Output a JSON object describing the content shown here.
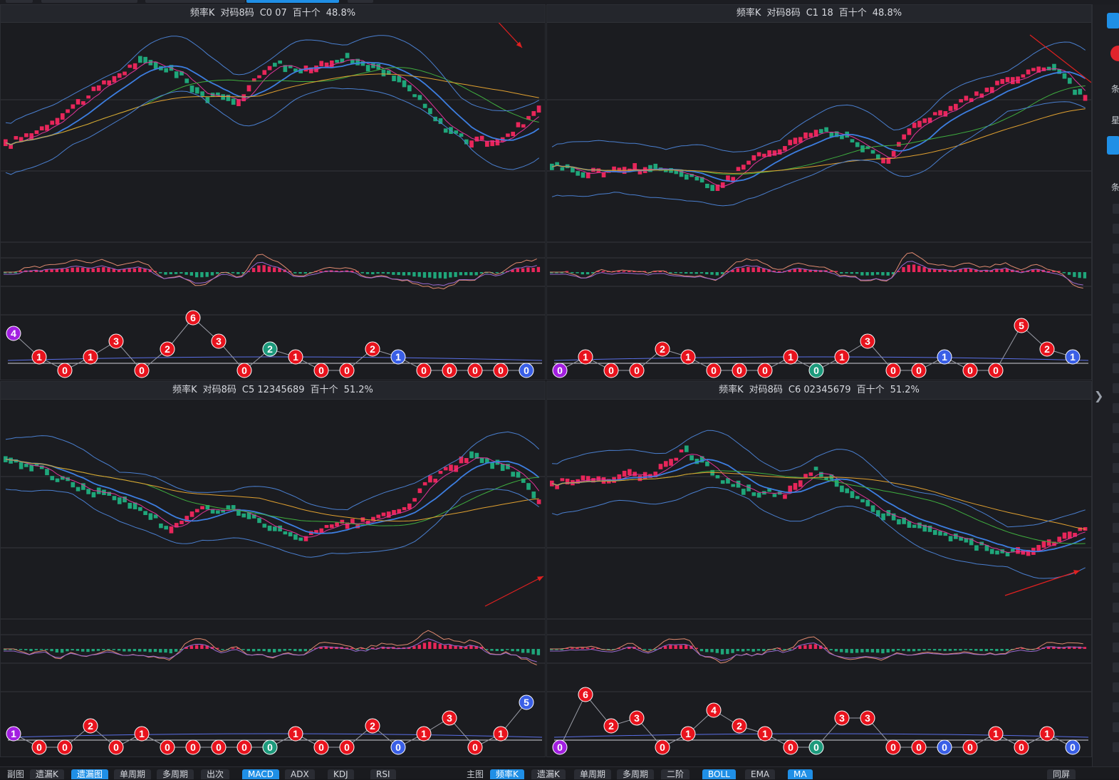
{
  "panels": [
    {
      "title": {
        "name": "频率K",
        "code": "对码8码",
        "group": "C0 07",
        "pos": "百十个",
        "pct": "48.8%"
      },
      "seq": [
        [
          4,
          "purple"
        ],
        [
          1,
          "red"
        ],
        [
          0,
          "red"
        ],
        [
          1,
          "red"
        ],
        [
          3,
          "red"
        ],
        [
          0,
          "red"
        ],
        [
          2,
          "red"
        ],
        [
          6,
          "red"
        ],
        [
          3,
          "red"
        ],
        [
          0,
          "red"
        ],
        [
          2,
          "teal"
        ],
        [
          1,
          "red"
        ],
        [
          0,
          "red"
        ],
        [
          0,
          "red"
        ],
        [
          2,
          "red"
        ],
        [
          1,
          "blue"
        ],
        [
          0,
          "red"
        ],
        [
          0,
          "red"
        ],
        [
          0,
          "red"
        ],
        [
          0,
          "red"
        ],
        [
          0,
          "blue"
        ]
      ],
      "arrow_direction": "down-right"
    },
    {
      "title": {
        "name": "频率K",
        "code": "对码8码",
        "group": "C1 18",
        "pos": "百十个",
        "pct": "48.8%"
      },
      "seq": [
        [
          0,
          "purple"
        ],
        [
          1,
          "red"
        ],
        [
          0,
          "red"
        ],
        [
          0,
          "red"
        ],
        [
          2,
          "red"
        ],
        [
          1,
          "red"
        ],
        [
          0,
          "red"
        ],
        [
          0,
          "red"
        ],
        [
          0,
          "red"
        ],
        [
          1,
          "red"
        ],
        [
          0,
          "teal"
        ],
        [
          1,
          "red"
        ],
        [
          3,
          "red"
        ],
        [
          0,
          "red"
        ],
        [
          0,
          "red"
        ],
        [
          1,
          "blue"
        ],
        [
          0,
          "red"
        ],
        [
          0,
          "red"
        ],
        [
          5,
          "red"
        ],
        [
          2,
          "red"
        ],
        [
          1,
          "blue"
        ]
      ],
      "arrow_direction": "down-right"
    },
    {
      "title": {
        "name": "频率K",
        "code": "对码8码",
        "group": "C5 12345689",
        "pos": "百十个",
        "pct": "51.2%"
      },
      "seq": [
        [
          1,
          "purple"
        ],
        [
          0,
          "red"
        ],
        [
          0,
          "red"
        ],
        [
          2,
          "red"
        ],
        [
          0,
          "red"
        ],
        [
          1,
          "red"
        ],
        [
          0,
          "red"
        ],
        [
          0,
          "red"
        ],
        [
          0,
          "red"
        ],
        [
          0,
          "red"
        ],
        [
          0,
          "teal"
        ],
        [
          1,
          "red"
        ],
        [
          0,
          "red"
        ],
        [
          0,
          "red"
        ],
        [
          2,
          "red"
        ],
        [
          0,
          "blue"
        ],
        [
          1,
          "red"
        ],
        [
          3,
          "red"
        ],
        [
          0,
          "red"
        ],
        [
          1,
          "red"
        ],
        [
          5,
          "blue"
        ]
      ],
      "arrow_direction": "up-right"
    },
    {
      "title": {
        "name": "频率K",
        "code": "对码8码",
        "group": "C6 02345679",
        "pos": "百十个",
        "pct": "51.2%"
      },
      "seq": [
        [
          0,
          "purple"
        ],
        [
          6,
          "red"
        ],
        [
          2,
          "red"
        ],
        [
          3,
          "red"
        ],
        [
          0,
          "red"
        ],
        [
          1,
          "red"
        ],
        [
          4,
          "red"
        ],
        [
          2,
          "red"
        ],
        [
          1,
          "red"
        ],
        [
          0,
          "red"
        ],
        [
          0,
          "teal"
        ],
        [
          3,
          "red"
        ],
        [
          3,
          "red"
        ],
        [
          0,
          "red"
        ],
        [
          0,
          "red"
        ],
        [
          0,
          "blue"
        ],
        [
          0,
          "red"
        ],
        [
          1,
          "red"
        ],
        [
          0,
          "red"
        ],
        [
          1,
          "red"
        ],
        [
          0,
          "blue"
        ]
      ],
      "arrow_direction": "up-right"
    }
  ],
  "sidebar": {
    "txt1": "条",
    "txt2": "星",
    "txt3": "条"
  },
  "bottom": {
    "left_label": "副图",
    "left_items": [
      {
        "label": "遗漏K",
        "active": false
      },
      {
        "label": "遗漏图",
        "active": true
      },
      {
        "label": "单周期",
        "active": false
      },
      {
        "label": "多周期",
        "active": false
      },
      {
        "label": "出次",
        "active": false
      },
      {
        "label": "MACD",
        "active": true
      },
      {
        "label": "ADX",
        "active": false
      },
      {
        "label": "KDJ",
        "active": false
      },
      {
        "label": "RSI",
        "active": false
      }
    ],
    "right_label": "主图",
    "right_items": [
      {
        "label": "频率K",
        "active": true
      },
      {
        "label": "遗漏K",
        "active": false
      },
      {
        "label": "单周期",
        "active": false
      },
      {
        "label": "多周期",
        "active": false
      },
      {
        "label": "二阶",
        "active": false
      },
      {
        "label": "BOLL",
        "active": true
      },
      {
        "label": "EMA",
        "active": false
      },
      {
        "label": "MA",
        "active": true
      }
    ],
    "far_right": "同屏"
  },
  "colors": {
    "up": "#e8265a",
    "down": "#1fa67a",
    "ma_pink": "#e0349a",
    "ma_blue": "#3d7ee0",
    "ma_green": "#3fae3f",
    "ma_orange": "#e0a030",
    "boll": "#4a7fcf",
    "arrow": "#e02020",
    "ball_red": "#e8131d",
    "ball_blue": "#3a5fe6",
    "ball_teal": "#1d9a7c",
    "ball_purple": "#a21fe0"
  }
}
